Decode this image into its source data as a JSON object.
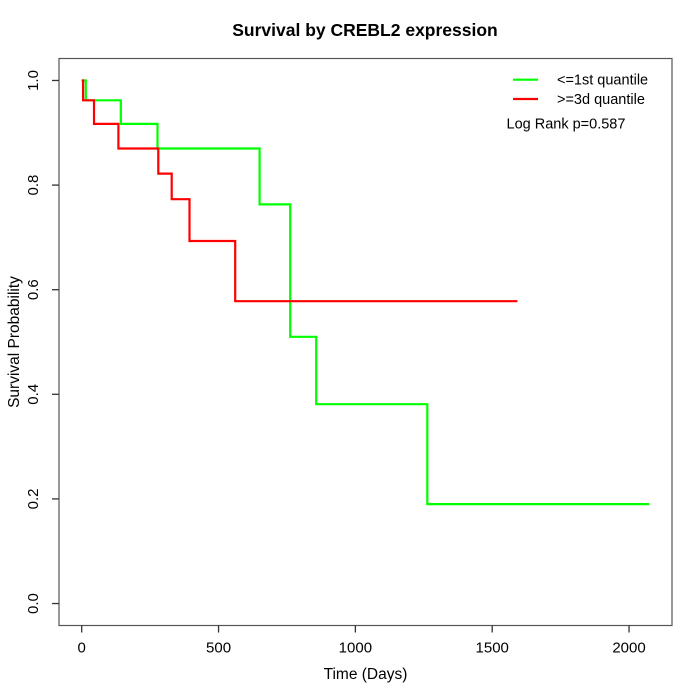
{
  "chart_data": {
    "type": "line",
    "subtype": "kaplan-meier-step",
    "title": "Survival by CREBL2 expression",
    "xlabel": "Time (Days)",
    "ylabel": "Survival Probability",
    "xlim": [
      -83,
      2157
    ],
    "ylim": [
      -0.042,
      1.042
    ],
    "xticks": [
      {
        "value": 0,
        "label": "0"
      },
      {
        "value": 500,
        "label": "500"
      },
      {
        "value": 1000,
        "label": "1000"
      },
      {
        "value": 1500,
        "label": "1500"
      },
      {
        "value": 2000,
        "label": "2000"
      }
    ],
    "yticks": [
      {
        "value": 0.0,
        "label": "0.0"
      },
      {
        "value": 0.2,
        "label": "0.2"
      },
      {
        "value": 0.4,
        "label": "0.4"
      },
      {
        "value": 0.6,
        "label": "0.6"
      },
      {
        "value": 0.8,
        "label": "0.8"
      },
      {
        "value": 1.0,
        "label": "1.0"
      }
    ],
    "grid": false,
    "legend_position": "top-right",
    "annotation": "Log Rank p=0.587",
    "series": [
      {
        "name": "<=1st quantile",
        "color": "#00ff00",
        "points": [
          [
            0,
            1.0
          ],
          [
            15,
            1.0
          ],
          [
            15,
            0.962
          ],
          [
            143,
            0.962
          ],
          [
            143,
            0.917
          ],
          [
            277,
            0.917
          ],
          [
            277,
            0.87
          ],
          [
            650,
            0.87
          ],
          [
            650,
            0.763
          ],
          [
            762,
            0.763
          ],
          [
            762,
            0.51
          ],
          [
            857,
            0.51
          ],
          [
            857,
            0.381
          ],
          [
            1263,
            0.381
          ],
          [
            1263,
            0.19
          ],
          [
            2074,
            0.19
          ]
        ]
      },
      {
        "name": ">=3d quantile",
        "color": "#ff0000",
        "points": [
          [
            0,
            1.0
          ],
          [
            5,
            1.0
          ],
          [
            5,
            0.962
          ],
          [
            45,
            0.962
          ],
          [
            45,
            0.917
          ],
          [
            134,
            0.917
          ],
          [
            134,
            0.87
          ],
          [
            280,
            0.87
          ],
          [
            280,
            0.822
          ],
          [
            329,
            0.822
          ],
          [
            329,
            0.773
          ],
          [
            394,
            0.773
          ],
          [
            394,
            0.693
          ],
          [
            561,
            0.693
          ],
          [
            561,
            0.578
          ],
          [
            1592,
            0.578
          ]
        ]
      }
    ],
    "style": {
      "curve_width": 2.2,
      "box_color": "#555555",
      "tick_color": "#333333"
    }
  }
}
